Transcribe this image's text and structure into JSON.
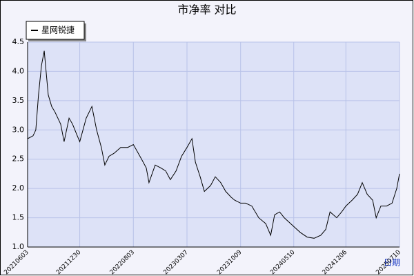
{
  "chart_data": {
    "type": "line",
    "title": "市净率  对比",
    "x_label": "日期",
    "x": [
      "20210603",
      "20210625",
      "20210706",
      "20210717",
      "20210729",
      "20210809",
      "20210825",
      "20210908",
      "20210922",
      "20211014",
      "20211028",
      "20211117",
      "20211201",
      "20211220",
      "20211230",
      "20220125",
      "20220217",
      "20220308",
      "20220327",
      "20220410",
      "20220427",
      "20220517",
      "20220613",
      "20220711",
      "20220803",
      "20220905",
      "20220924",
      "20221005",
      "20221030",
      "20221122",
      "20221211",
      "20221230",
      "20230122",
      "20230213",
      "20230307",
      "20230327",
      "20230410",
      "20230429",
      "20230516",
      "20230610",
      "20230629",
      "20230721",
      "20230810",
      "20230901",
      "20230915",
      "20231009",
      "20231029",
      "20231123",
      "20231221",
      "20240118",
      "20240207",
      "20240223",
      "20240314",
      "20240402",
      "20240510",
      "20240605",
      "20240703",
      "20240731",
      "20240827",
      "20240916",
      "20241003",
      "20241030",
      "20241119",
      "20241206",
      "20241231",
      "20250122",
      "20250210",
      "20250302",
      "20250324",
      "20250407",
      "20250426",
      "20250519",
      "20250610",
      "20250629",
      "20250710"
    ],
    "series": [
      {
        "name": "星网锐捷",
        "color": "#000000",
        "values": [
          2.85,
          2.9,
          3.0,
          3.6,
          4.1,
          4.35,
          3.6,
          3.4,
          3.3,
          3.1,
          2.8,
          3.2,
          3.1,
          2.9,
          2.8,
          3.2,
          3.4,
          3.0,
          2.7,
          2.4,
          2.55,
          2.6,
          2.7,
          2.7,
          2.75,
          2.5,
          2.35,
          2.1,
          2.4,
          2.35,
          2.3,
          2.15,
          2.3,
          2.55,
          2.7,
          2.85,
          2.45,
          2.2,
          1.95,
          2.05,
          2.2,
          2.1,
          1.95,
          1.85,
          1.8,
          1.75,
          1.75,
          1.7,
          1.5,
          1.4,
          1.2,
          1.55,
          1.6,
          1.5,
          1.35,
          1.25,
          1.17,
          1.15,
          1.2,
          1.3,
          1.6,
          1.5,
          1.6,
          1.7,
          1.8,
          1.9,
          2.1,
          1.9,
          1.8,
          1.5,
          1.7,
          1.7,
          1.75,
          2.0,
          2.25
        ]
      }
    ],
    "xlim": [
      "20210603",
      "20250710"
    ],
    "xticks": [
      "20210603",
      "20211230",
      "20220803",
      "20230307",
      "20231009",
      "20240510",
      "20241206",
      "20250710"
    ],
    "ylim": [
      1,
      4.5
    ],
    "yticks": [
      {
        "value": 1,
        "label": "1.0"
      },
      1.5,
      {
        "value": 2,
        "label": "2.0"
      },
      2.5,
      {
        "value": 3,
        "label": "3.0"
      },
      3.5,
      {
        "value": 4,
        "label": "4.0"
      },
      4.5
    ],
    "grid": true,
    "legend": "top-left"
  }
}
